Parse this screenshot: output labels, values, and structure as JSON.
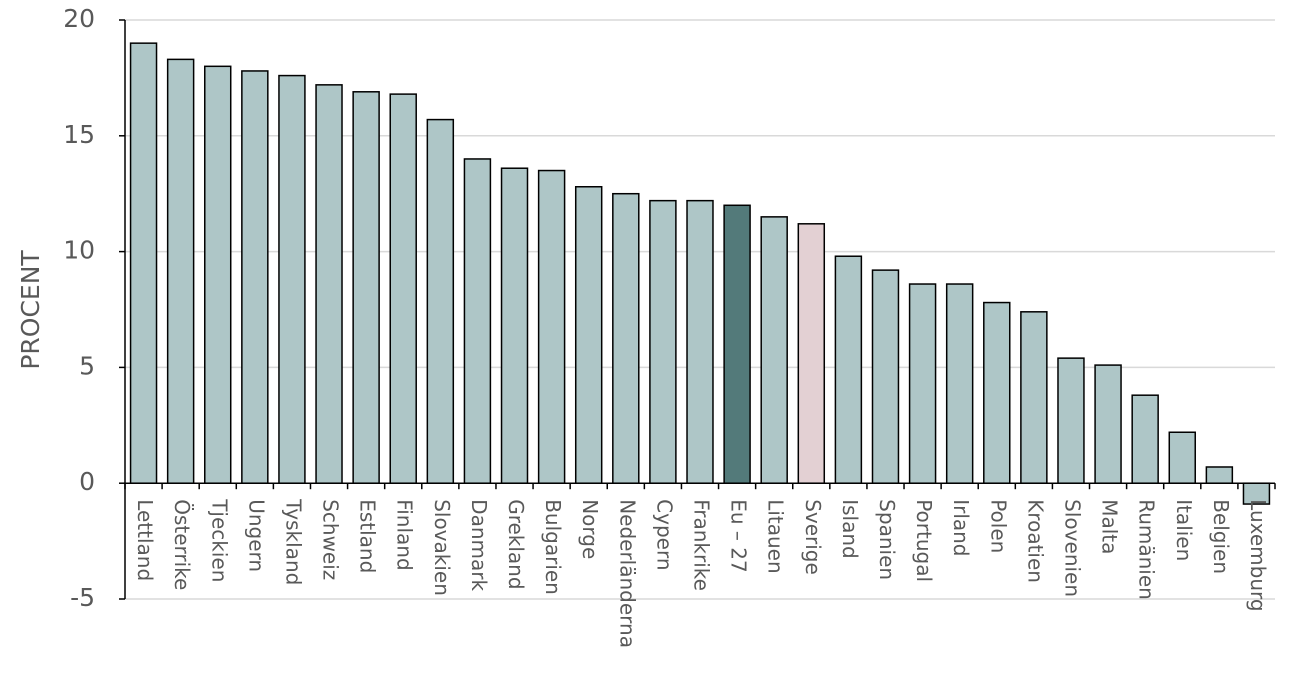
{
  "chart_data": {
    "type": "bar",
    "y_label": "PROCENT",
    "categories": [
      "Lettland",
      "Österrike",
      "Tjeckien",
      "Ungern",
      "Tyskland",
      "Schweiz",
      "Estland",
      "Finland",
      "Slovakien",
      "Danmark",
      "Grekland",
      "Bulgarien",
      "Norge",
      "Nederländerna",
      "Cypern",
      "Frankrike",
      "Eu – 27",
      "Litauen",
      "Sverige",
      "Island",
      "Spanien",
      "Portugal",
      "Irland",
      "Polen",
      "Kroatien",
      "Slovenien",
      "Malta",
      "Rumänien",
      "Italien",
      "Belgien",
      "Luxemburg"
    ],
    "values": [
      19.0,
      18.3,
      18.0,
      17.8,
      17.6,
      17.2,
      16.9,
      16.8,
      15.7,
      14.0,
      13.6,
      13.5,
      12.8,
      12.5,
      12.2,
      12.2,
      12.0,
      11.5,
      11.2,
      9.8,
      9.2,
      8.6,
      8.6,
      7.8,
      7.4,
      5.4,
      5.1,
      3.8,
      2.2,
      0.7,
      -0.9
    ],
    "colors": [
      "#aec6c7",
      "#aec6c7",
      "#aec6c7",
      "#aec6c7",
      "#aec6c7",
      "#aec6c7",
      "#aec6c7",
      "#aec6c7",
      "#aec6c7",
      "#aec6c7",
      "#aec6c7",
      "#aec6c7",
      "#aec6c7",
      "#aec6c7",
      "#aec6c7",
      "#aec6c7",
      "#537a7a",
      "#aec6c7",
      "#e3d0d3",
      "#aec6c7",
      "#aec6c7",
      "#aec6c7",
      "#aec6c7",
      "#aec6c7",
      "#aec6c7",
      "#aec6c7",
      "#aec6c7",
      "#aec6c7",
      "#aec6c7",
      "#aec6c7",
      "#aec6c7"
    ],
    "ylim": [
      -5,
      20
    ],
    "yticks": [
      -5,
      0,
      5,
      10,
      15,
      20
    ],
    "grid": true
  }
}
